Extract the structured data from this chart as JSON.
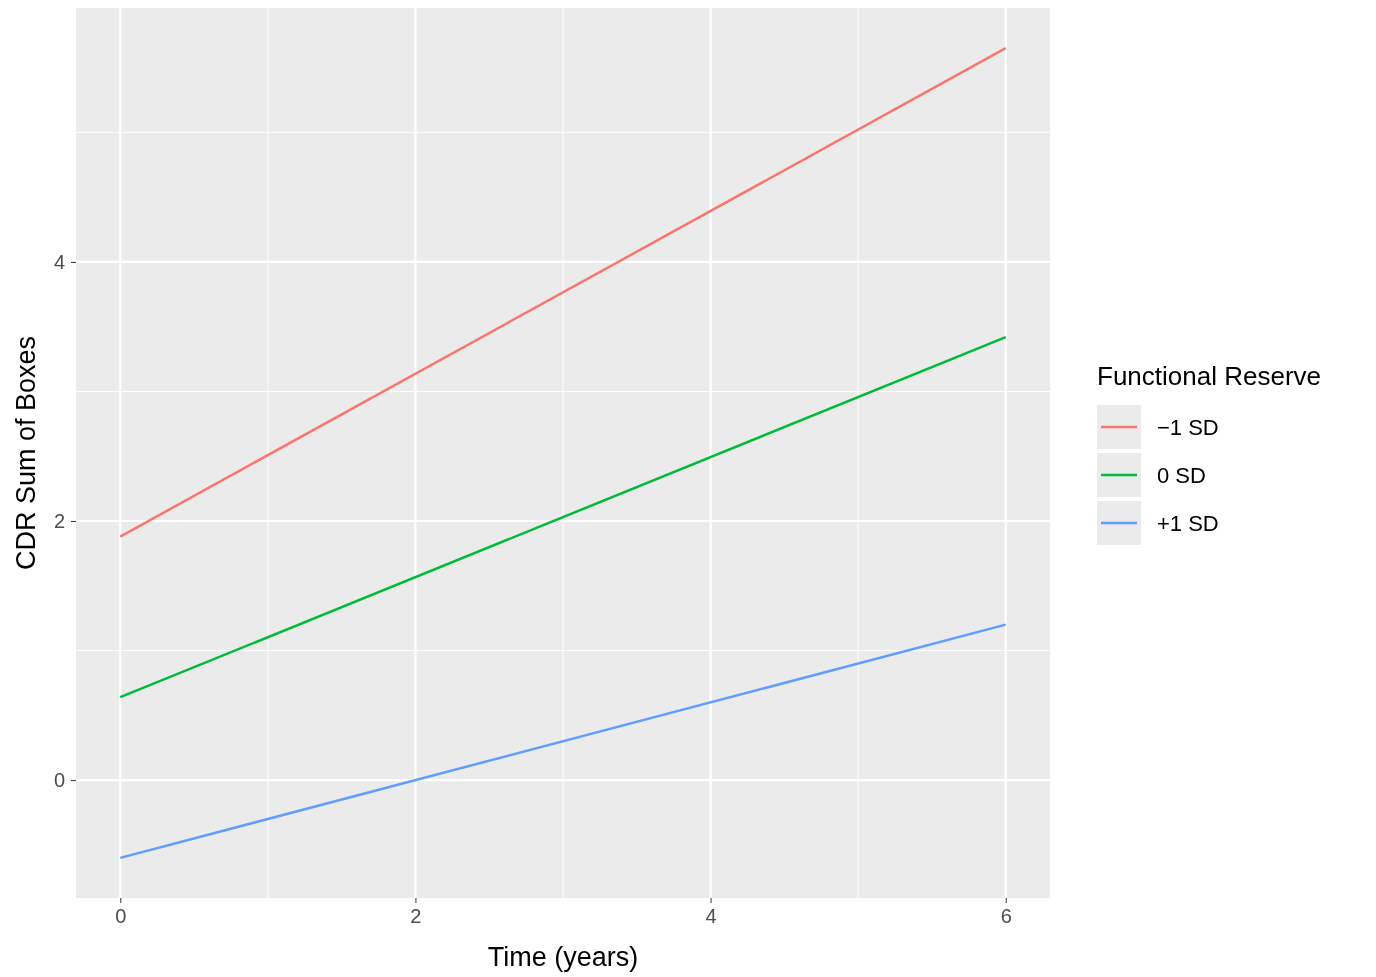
{
  "chart_data": {
    "type": "line",
    "xlabel": "Time (years)",
    "ylabel": "CDR Sum of Boxes",
    "legend_title": "Functional Reserve",
    "x": [
      0,
      6
    ],
    "series": [
      {
        "name": "−1 SD",
        "color": "#f8766d",
        "values": [
          1.88,
          5.65
        ]
      },
      {
        "name": "0 SD",
        "color": "#00ba38",
        "values": [
          0.64,
          3.42
        ]
      },
      {
        "name": "+1 SD",
        "color": "#619cff",
        "values": [
          -0.6,
          1.2
        ]
      }
    ],
    "xlim": [
      -0.3,
      6.3
    ],
    "ylim": [
      -0.91,
      5.96
    ],
    "xticks": [
      0,
      2,
      4,
      6
    ],
    "yticks": [
      0,
      2,
      4
    ],
    "grid": true,
    "legend": "right",
    "line_style": "solid"
  }
}
